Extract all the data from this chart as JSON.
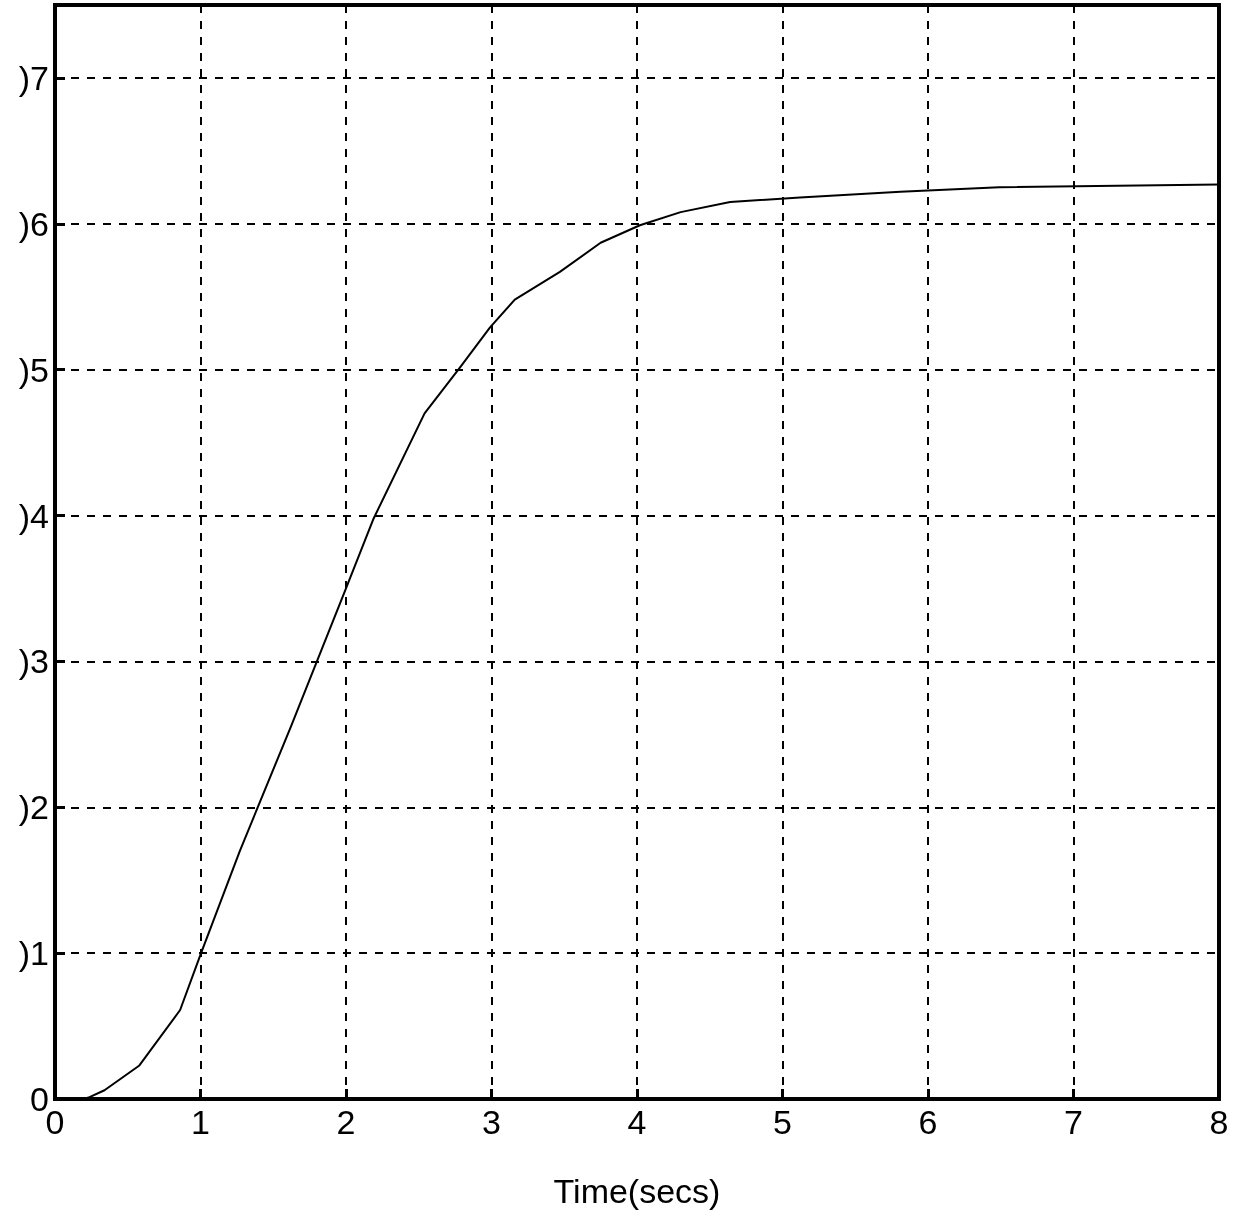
{
  "chart_data": {
    "type": "line",
    "xlabel": "Time(secs)",
    "x": [
      0,
      0.2,
      0.23,
      0.34,
      0.58,
      0.86,
      1.0,
      1.27,
      1.62,
      2.0,
      2.19,
      2.54,
      2.78,
      2.99,
      3.16,
      3.47,
      3.75,
      4.02,
      4.3,
      4.64,
      5.12,
      5.81,
      6.49,
      8.0
    ],
    "series": [
      {
        "color": "#000000",
        "values": [
          0,
          0,
          0.01,
          0.06,
          0.23,
          0.61,
          0.99,
          1.7,
          2.55,
          3.5,
          3.98,
          4.7,
          5.01,
          5.29,
          5.48,
          5.67,
          5.87,
          5.99,
          6.08,
          6.15,
          6.18,
          6.22,
          6.25,
          6.27
        ]
      }
    ],
    "xlim": [
      0,
      8
    ],
    "xticks": [
      0,
      1,
      2,
      3,
      4,
      5,
      6,
      7,
      8
    ],
    "ylim": [
      0,
      7.5
    ],
    "yticks": [
      0,
      {
        "value": 1,
        "label": ")1"
      },
      {
        "value": 2,
        "label": ")2"
      },
      {
        "value": 3,
        "label": ")3"
      },
      {
        "value": 4,
        "label": ")4"
      },
      {
        "value": 5,
        "label": ")5"
      },
      {
        "value": 6,
        "label": ")6"
      },
      {
        "value": 7,
        "label": ")7"
      }
    ],
    "grid": true,
    "line_style": "solid",
    "marker": "none"
  }
}
